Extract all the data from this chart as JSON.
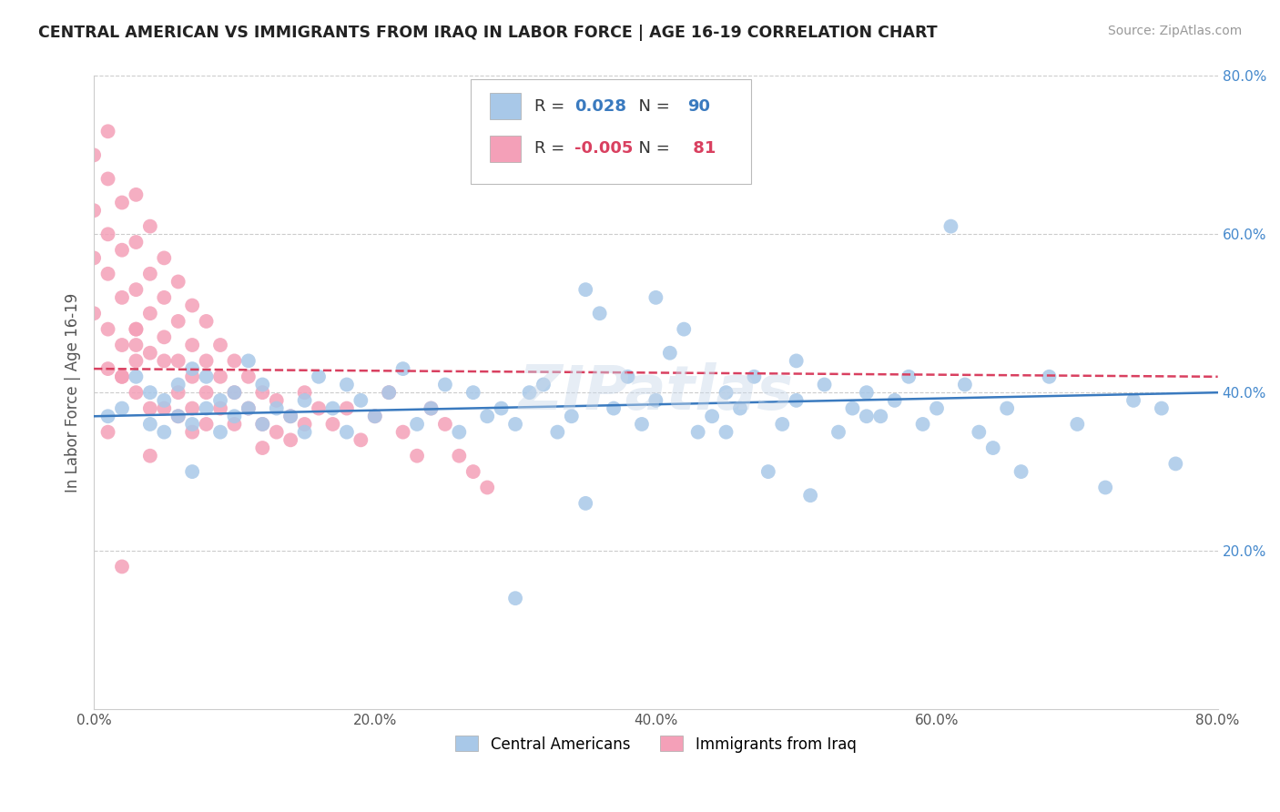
{
  "title": "CENTRAL AMERICAN VS IMMIGRANTS FROM IRAQ IN LABOR FORCE | AGE 16-19 CORRELATION CHART",
  "source": "Source: ZipAtlas.com",
  "ylabel": "In Labor Force | Age 16-19",
  "xlim": [
    0.0,
    0.8
  ],
  "ylim": [
    0.0,
    0.8
  ],
  "xticks": [
    0.0,
    0.2,
    0.4,
    0.6,
    0.8
  ],
  "yticks": [
    0.2,
    0.4,
    0.6,
    0.8
  ],
  "xticklabels": [
    "0.0%",
    "20.0%",
    "40.0%",
    "60.0%",
    "80.0%"
  ],
  "yticklabels": [
    "20.0%",
    "40.0%",
    "60.0%",
    "80.0%"
  ],
  "blue_R": 0.028,
  "blue_N": 90,
  "pink_R": -0.005,
  "pink_N": 81,
  "blue_color": "#a8c8e8",
  "pink_color": "#f4a0b8",
  "blue_line_color": "#3a7abf",
  "pink_line_color": "#d94060",
  "background_color": "#ffffff",
  "grid_color": "#cccccc",
  "watermark": "ZIPatlas",
  "legend_label_blue": "Central Americans",
  "legend_label_pink": "Immigrants from Iraq",
  "blue_scatter_x": [
    0.01,
    0.02,
    0.03,
    0.04,
    0.04,
    0.05,
    0.05,
    0.06,
    0.06,
    0.07,
    0.07,
    0.07,
    0.08,
    0.08,
    0.09,
    0.09,
    0.1,
    0.1,
    0.11,
    0.11,
    0.12,
    0.12,
    0.13,
    0.14,
    0.15,
    0.15,
    0.16,
    0.17,
    0.18,
    0.18,
    0.19,
    0.2,
    0.21,
    0.22,
    0.23,
    0.24,
    0.25,
    0.26,
    0.27,
    0.28,
    0.29,
    0.3,
    0.31,
    0.32,
    0.33,
    0.34,
    0.35,
    0.36,
    0.37,
    0.38,
    0.39,
    0.4,
    0.41,
    0.42,
    0.43,
    0.44,
    0.45,
    0.46,
    0.47,
    0.48,
    0.49,
    0.5,
    0.51,
    0.52,
    0.53,
    0.54,
    0.55,
    0.56,
    0.57,
    0.58,
    0.59,
    0.6,
    0.61,
    0.62,
    0.63,
    0.64,
    0.65,
    0.66,
    0.68,
    0.7,
    0.72,
    0.74,
    0.76,
    0.45,
    0.3,
    0.4,
    0.35,
    0.5,
    0.55,
    0.77
  ],
  "blue_scatter_y": [
    0.37,
    0.38,
    0.42,
    0.36,
    0.4,
    0.35,
    0.39,
    0.41,
    0.37,
    0.43,
    0.36,
    0.3,
    0.42,
    0.38,
    0.39,
    0.35,
    0.4,
    0.37,
    0.38,
    0.44,
    0.36,
    0.41,
    0.38,
    0.37,
    0.39,
    0.35,
    0.42,
    0.38,
    0.41,
    0.35,
    0.39,
    0.37,
    0.4,
    0.43,
    0.36,
    0.38,
    0.41,
    0.35,
    0.4,
    0.37,
    0.38,
    0.36,
    0.4,
    0.41,
    0.35,
    0.37,
    0.53,
    0.5,
    0.38,
    0.42,
    0.36,
    0.39,
    0.45,
    0.48,
    0.35,
    0.37,
    0.4,
    0.38,
    0.42,
    0.3,
    0.36,
    0.39,
    0.27,
    0.41,
    0.35,
    0.38,
    0.4,
    0.37,
    0.39,
    0.42,
    0.36,
    0.38,
    0.61,
    0.41,
    0.35,
    0.33,
    0.38,
    0.3,
    0.42,
    0.36,
    0.28,
    0.39,
    0.38,
    0.35,
    0.14,
    0.52,
    0.26,
    0.44,
    0.37,
    0.31
  ],
  "pink_scatter_x": [
    0.0,
    0.0,
    0.0,
    0.0,
    0.01,
    0.01,
    0.01,
    0.01,
    0.01,
    0.01,
    0.02,
    0.02,
    0.02,
    0.02,
    0.02,
    0.03,
    0.03,
    0.03,
    0.03,
    0.03,
    0.03,
    0.04,
    0.04,
    0.04,
    0.04,
    0.04,
    0.05,
    0.05,
    0.05,
    0.05,
    0.06,
    0.06,
    0.06,
    0.06,
    0.07,
    0.07,
    0.07,
    0.07,
    0.08,
    0.08,
    0.08,
    0.08,
    0.09,
    0.09,
    0.09,
    0.1,
    0.1,
    0.1,
    0.11,
    0.11,
    0.12,
    0.12,
    0.12,
    0.13,
    0.13,
    0.14,
    0.14,
    0.15,
    0.15,
    0.16,
    0.17,
    0.18,
    0.19,
    0.2,
    0.21,
    0.22,
    0.23,
    0.24,
    0.25,
    0.26,
    0.27,
    0.28,
    0.01,
    0.02,
    0.03,
    0.04,
    0.05,
    0.06,
    0.07,
    0.03,
    0.02
  ],
  "pink_scatter_y": [
    0.7,
    0.63,
    0.57,
    0.5,
    0.67,
    0.6,
    0.55,
    0.48,
    0.43,
    0.73,
    0.64,
    0.58,
    0.52,
    0.46,
    0.42,
    0.65,
    0.59,
    0.53,
    0.48,
    0.44,
    0.4,
    0.61,
    0.55,
    0.5,
    0.45,
    0.38,
    0.57,
    0.52,
    0.47,
    0.38,
    0.54,
    0.49,
    0.44,
    0.4,
    0.51,
    0.46,
    0.42,
    0.38,
    0.49,
    0.44,
    0.4,
    0.36,
    0.46,
    0.42,
    0.38,
    0.44,
    0.4,
    0.36,
    0.42,
    0.38,
    0.4,
    0.36,
    0.33,
    0.39,
    0.35,
    0.37,
    0.34,
    0.4,
    0.36,
    0.38,
    0.36,
    0.38,
    0.34,
    0.37,
    0.4,
    0.35,
    0.32,
    0.38,
    0.36,
    0.32,
    0.3,
    0.28,
    0.35,
    0.42,
    0.46,
    0.32,
    0.44,
    0.37,
    0.35,
    0.48,
    0.18
  ]
}
